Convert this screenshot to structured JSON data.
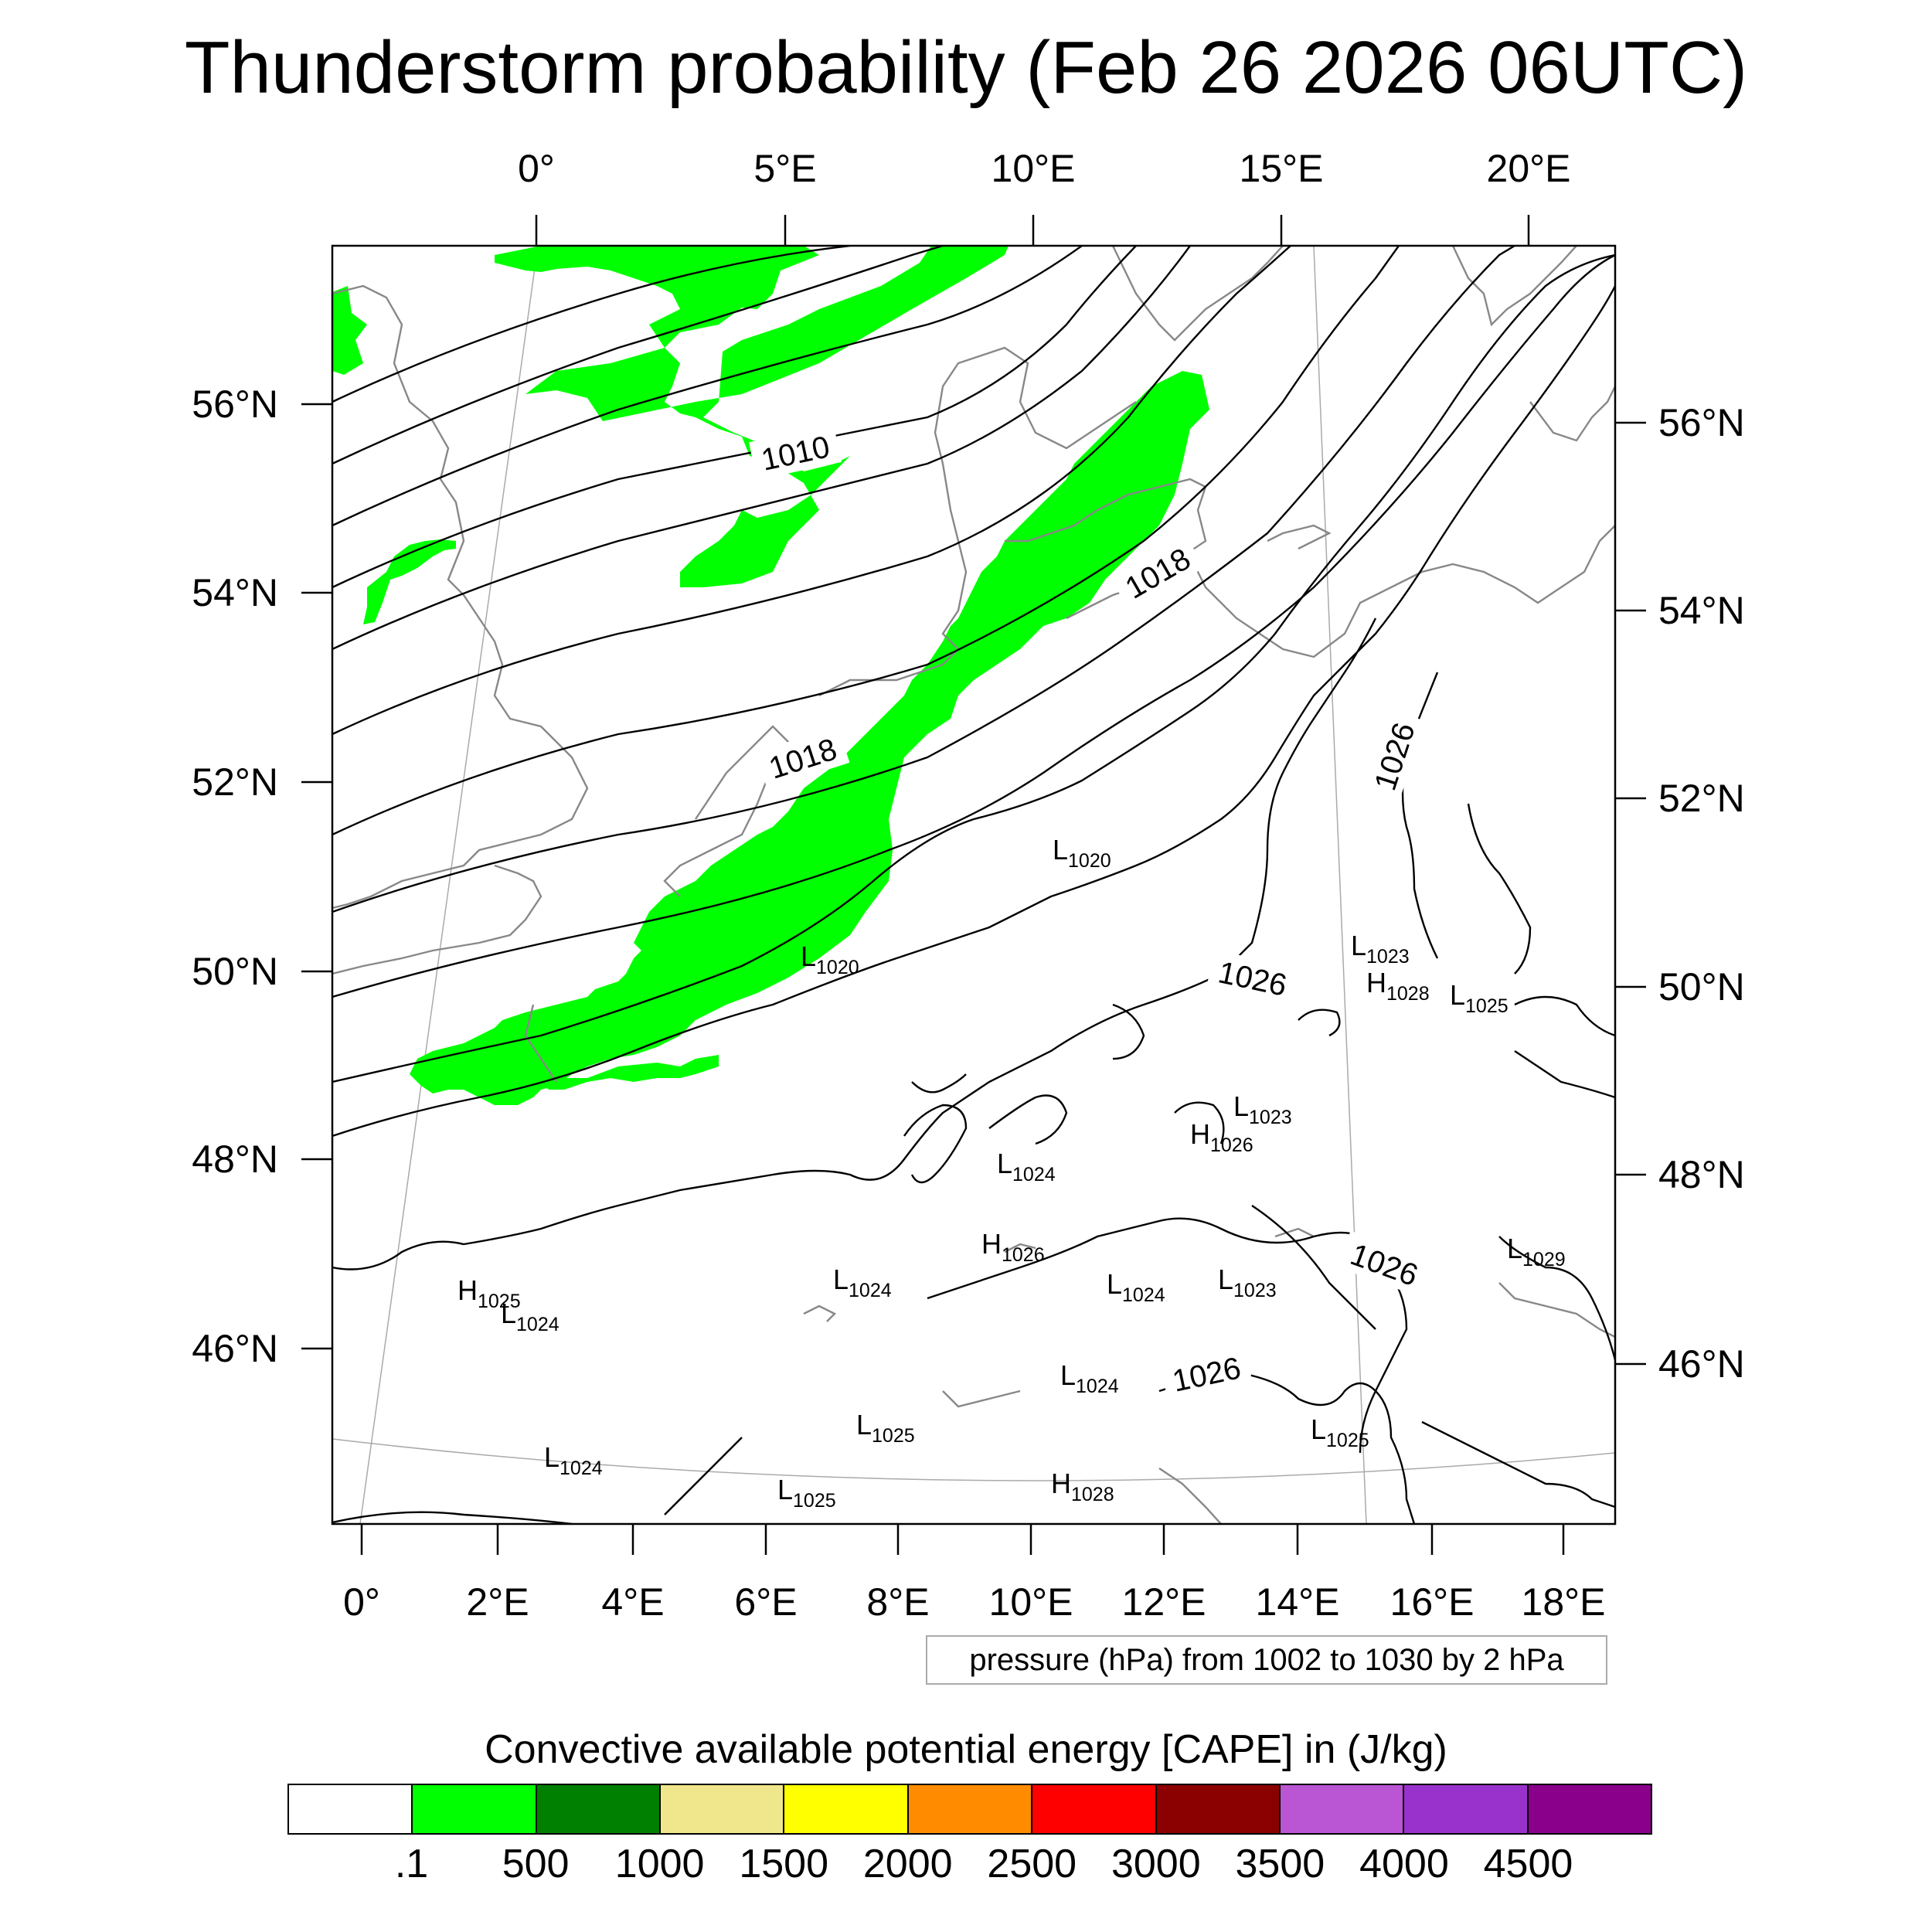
{
  "title": "Thunderstorm probability (Feb 26 2026 06UTC)",
  "axes": {
    "top_lon_labels": [
      "0°",
      "5°E",
      "10°E",
      "15°E",
      "20°E"
    ],
    "bottom_lon_labels": [
      "0°",
      "2°E",
      "4°E",
      "6°E",
      "8°E",
      "10°E",
      "12°E",
      "14°E",
      "16°E",
      "18°E"
    ],
    "left_lat_labels": [
      "56°N",
      "54°N",
      "52°N",
      "50°N",
      "48°N",
      "46°N"
    ],
    "right_lat_labels": [
      "56°N",
      "54°N",
      "52°N",
      "50°N",
      "48°N",
      "46°N"
    ]
  },
  "contour_labels": [
    "1010",
    "1018",
    "1018",
    "1026",
    "1026",
    "1026",
    "1026"
  ],
  "pressure_centers": [
    {
      "type": "L",
      "value": "1020"
    },
    {
      "type": "L",
      "value": "1020"
    },
    {
      "type": "L",
      "value": "1023"
    },
    {
      "type": "H",
      "value": "1028"
    },
    {
      "type": "L",
      "value": "1025"
    },
    {
      "type": "L",
      "value": "1023"
    },
    {
      "type": "H",
      "value": "1026"
    },
    {
      "type": "L",
      "value": "1024"
    },
    {
      "type": "H",
      "value": "1026"
    },
    {
      "type": "L",
      "value": "1024"
    },
    {
      "type": "L",
      "value": "1024"
    },
    {
      "type": "L",
      "value": "1023"
    },
    {
      "type": "H",
      "value": "1025"
    },
    {
      "type": "L",
      "value": "1024"
    },
    {
      "type": "L",
      "value": "1029"
    },
    {
      "type": "L",
      "value": "1024"
    },
    {
      "type": "L",
      "value": "1025"
    },
    {
      "type": "L",
      "value": "1025"
    },
    {
      "type": "L",
      "value": "1024"
    },
    {
      "type": "L",
      "value": "1025"
    },
    {
      "type": "H",
      "value": "1028"
    }
  ],
  "pressure_note": "pressure (hPa) from 1002 to 1030 by 2 hPa",
  "colorbar": {
    "title": "Convective available potential energy [CAPE] in (J/kg)",
    "colors": [
      "#ffffff",
      "#00ff00",
      "#008000",
      "#f0e68c",
      "#ffff00",
      "#ff8c00",
      "#ff0000",
      "#8b0000",
      "#ba55d3",
      "#9932cc",
      "#8b008b"
    ],
    "labels": [
      ".1",
      "500",
      "1000",
      "1500",
      "2000",
      "2500",
      "3000",
      "3500",
      "4000",
      "4500"
    ]
  },
  "legend_colors": {
    "cape_green": "#00ff00",
    "coast": "#888888",
    "isobar": "#000000"
  }
}
